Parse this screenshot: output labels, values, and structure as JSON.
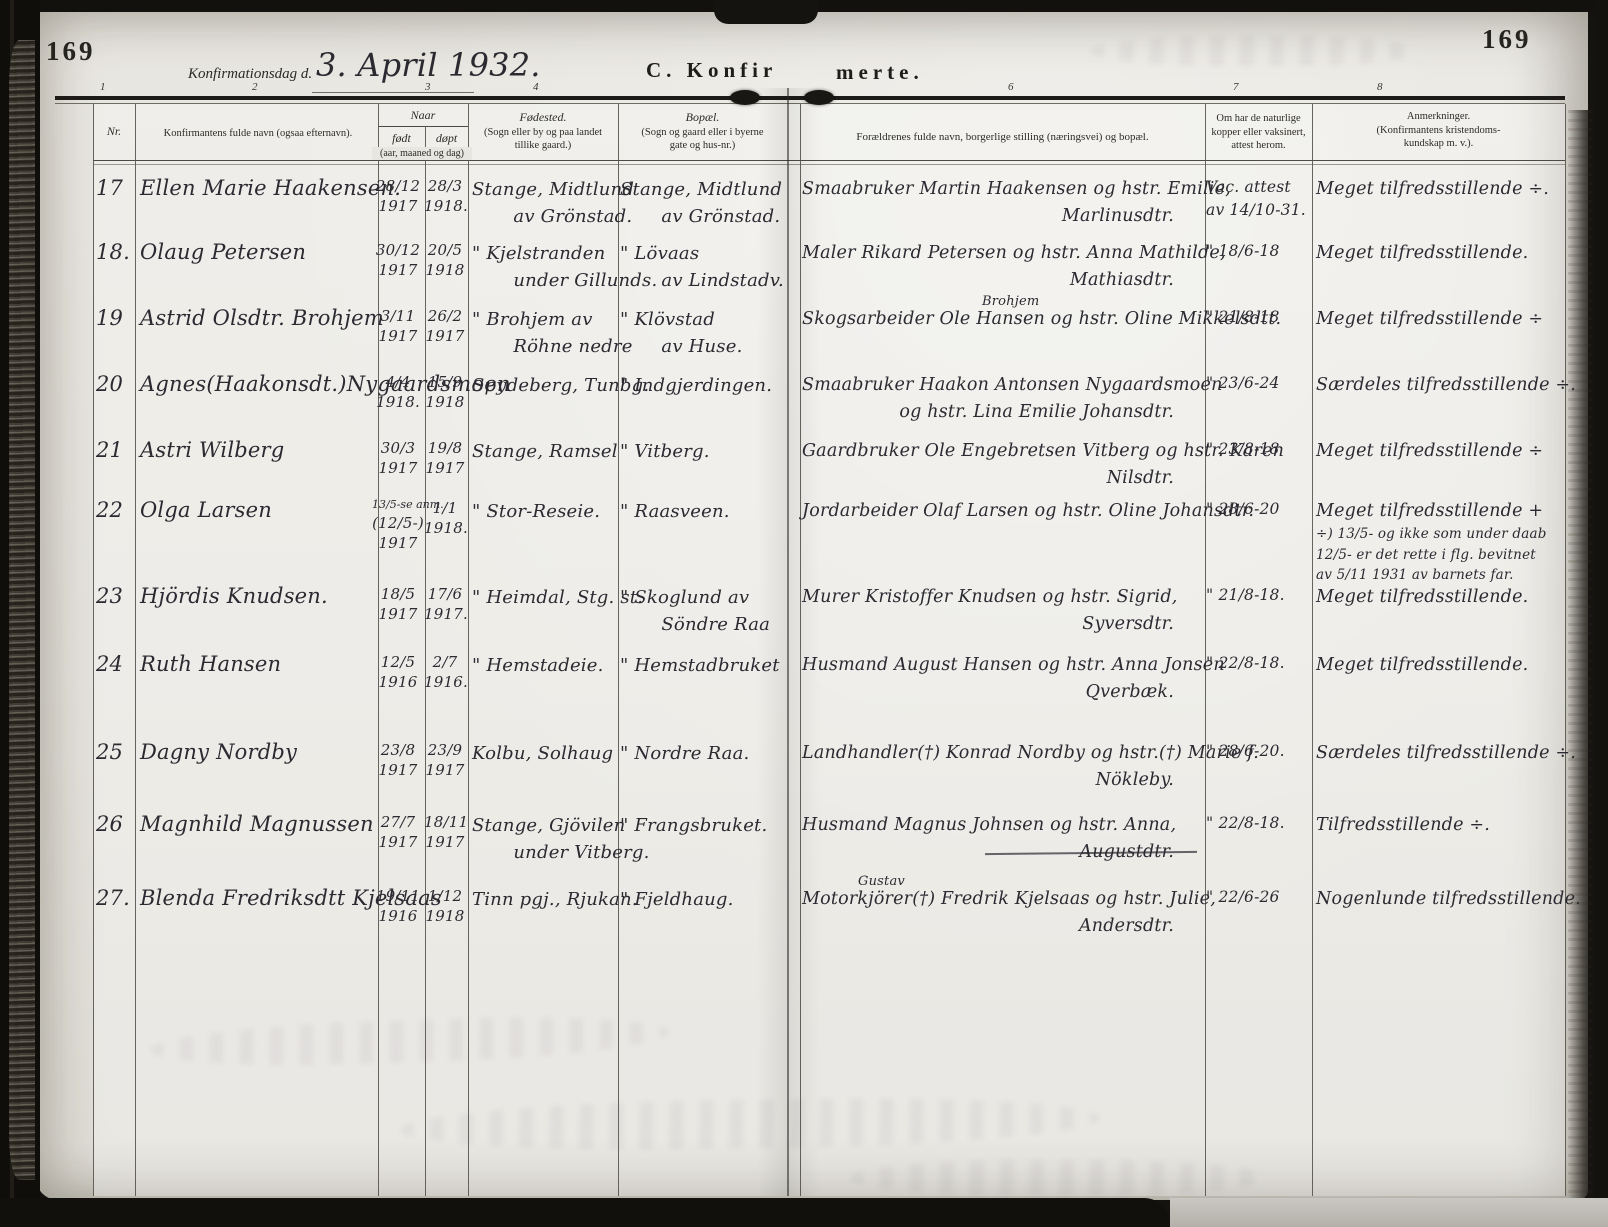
{
  "page": {
    "page_number_left": "169",
    "page_number_right": "169",
    "confirmation_day_label": "Konfirmationsdag d.",
    "confirmation_day_value": "3. April 1932.",
    "section_title_left": "C.  Konfir",
    "section_title_right": "merte.",
    "column_numbers": [
      "1",
      "2",
      "3",
      "4",
      "6",
      "7",
      "8"
    ]
  },
  "table": {
    "headers": {
      "nr": "Nr.",
      "name": "Konfirmantens fulde navn (ogsaa efternavn).",
      "naar": "Naar",
      "born": "født",
      "baptized": "døpt",
      "naar_sub": "(aar, maaned og dag)",
      "birthplace_title": "Fødested.",
      "birthplace_sub": [
        "(Sogn eller by og paa landet",
        "tillike gaard.)"
      ],
      "residence_title": "Bopæl.",
      "residence_sub": [
        "(Sogn og gaard eller i byerne",
        "gate og hus-nr.)"
      ],
      "parents": "Forældrenes fulde navn, borgerlige stilling (næringsvei) og bopæl.",
      "vaccination": [
        "Om har de naturlige",
        "kopper eller vaksinert,",
        "attest herom."
      ],
      "remarks": [
        "Anmerkninger.",
        "(Konfirmantens kristendoms-",
        "kundskap m. v.)."
      ]
    },
    "rows": [
      {
        "nr": "17",
        "name": "Ellen Marie Haakensen.",
        "born": [
          "28/12",
          "1917"
        ],
        "baptized": [
          "28/3",
          "1918."
        ],
        "birthplace": [
          "Stange, Midtlund",
          "av Grönstad."
        ],
        "residence": [
          "Stange, Midtlund",
          "av Grönstad."
        ],
        "parents": [
          "Smaabruker Martin Haakensen og hstr. Emilie,",
          "Marlinusdtr."
        ],
        "vaccination": [
          "Vac. attest",
          "av 14/10-31."
        ],
        "remarks": [
          "Meget tilfredsstillende ÷."
        ]
      },
      {
        "nr": "18.",
        "name": "Olaug Petersen",
        "born": [
          "30/12",
          "1917"
        ],
        "baptized": [
          "20/5",
          "1918"
        ],
        "birthplace": [
          "\" Kjelstranden",
          "under Gillunds."
        ],
        "residence": [
          "\" Lövaas",
          "av Lindstadv."
        ],
        "parents": [
          "Maler Rikard Petersen og hstr. Anna Mathilde,",
          "Mathiasdtr."
        ],
        "vaccination": [
          "\" 18/6-18"
        ],
        "remarks": [
          "Meget tilfredsstillende."
        ]
      },
      {
        "nr": "19",
        "name": "Astrid Olsdtr. Brohjem",
        "born": [
          "3/11",
          "1917"
        ],
        "baptized": [
          "26/2",
          "1917"
        ],
        "birthplace": [
          "\" Brohjem av",
          "Röhne nedre"
        ],
        "residence": [
          "\" Klövstad",
          "av Huse."
        ],
        "parents": [
          "Skogsarbeider Ole Hansen og hstr. Oline Mikkelsdtt."
        ],
        "parents_note": "Brohjem",
        "vaccination": [
          "\" 21/8-18"
        ],
        "remarks": [
          "Meget tilfredsstillende ÷"
        ]
      },
      {
        "nr": "20",
        "name": "Agnes(Haakonsdt.)Nygaardsmoen",
        "born": [
          "4/4",
          "1918."
        ],
        "baptized": [
          "15/9",
          "1918"
        ],
        "birthplace": [
          "Spydeberg, Tunbg."
        ],
        "residence": [
          "\" Indgjerdingen."
        ],
        "parents": [
          "Smaabruker Haakon Antonsen Nygaardsmoen",
          "og hstr. Lina Emilie Johansdtr."
        ],
        "vaccination": [
          "\" 23/6-24"
        ],
        "remarks": [
          "Særdeles tilfredsstillende ÷."
        ]
      },
      {
        "nr": "21",
        "name": "Astri Wilberg",
        "born": [
          "30/3",
          "1917"
        ],
        "baptized": [
          "19/8",
          "1917"
        ],
        "birthplace": [
          "Stange, Ramsel"
        ],
        "residence": [
          "\" Vitberg."
        ],
        "parents": [
          "Gaardbruker Ole Engebretsen Vitberg og hstr. Karen",
          "Nilsdtr."
        ],
        "vaccination": [
          "\" 23/8-18"
        ],
        "remarks": [
          "Meget tilfredsstillende ÷"
        ]
      },
      {
        "nr": "22",
        "name": "Olga Larsen",
        "born": [
          "13/5-se anm.",
          "(12/5-)",
          "1917"
        ],
        "baptized": [
          "1/1",
          "1918."
        ],
        "birthplace": [
          "\" Stor-Reseie."
        ],
        "residence": [
          "\" Raasveen."
        ],
        "parents": [
          "Jordarbeider Olaf Larsen og hstr. Oline Johansdtr."
        ],
        "vaccination": [
          "\" 28/6-20"
        ],
        "remarks": [
          "Meget tilfredsstillende +",
          "÷) 13/5- og ikke som under daab",
          "12/5- er det rette i flg. bevitnet",
          "av 5/11 1931 av barnets far."
        ]
      },
      {
        "nr": "23",
        "name": "Hjördis Knudsen.",
        "born": [
          "18/5",
          "1917"
        ],
        "baptized": [
          "17/6",
          "1917."
        ],
        "birthplace": [
          "\" Heimdal, Stg. st."
        ],
        "residence": [
          "\" Skoglund av",
          "Söndre Raa"
        ],
        "parents": [
          "Murer Kristoffer Knudsen og hstr. Sigrid,",
          "Syversdtr."
        ],
        "vaccination": [
          "\" 21/8-18."
        ],
        "remarks": [
          "Meget tilfredsstillende."
        ]
      },
      {
        "nr": "24",
        "name": "Ruth Hansen",
        "born": [
          "12/5",
          "1916"
        ],
        "baptized": [
          "2/7",
          "1916."
        ],
        "birthplace": [
          "\" Hemstadeie."
        ],
        "residence": [
          "\" Hemstadbruket"
        ],
        "parents": [
          "Husmand August Hansen og hstr. Anna Jonsen",
          "Qverbæk."
        ],
        "vaccination": [
          "\" 22/8-18."
        ],
        "remarks": [
          "Meget tilfredsstillende."
        ]
      },
      {
        "nr": "25",
        "name": "Dagny Nordby",
        "born": [
          "23/8",
          "1917"
        ],
        "baptized": [
          "23/9",
          "1917"
        ],
        "birthplace": [
          "Kolbu, Solhaug"
        ],
        "residence": [
          "\" Nordre Raa."
        ],
        "parents": [
          "Landhandler(†) Konrad Nordby og hstr.(†) Marie f.",
          "Nökleby."
        ],
        "vaccination": [
          "\" 28/6-20."
        ],
        "remarks": [
          "Særdeles tilfredsstillende ÷."
        ]
      },
      {
        "nr": "26",
        "name": "Magnhild Magnussen",
        "born": [
          "27/7",
          "1917"
        ],
        "baptized": [
          "18/11",
          "1917"
        ],
        "birthplace": [
          "Stange, Gjövilen",
          "under Vitberg."
        ],
        "residence": [
          "\" Frangsbruket."
        ],
        "parents": [
          "Husmand Magnus Johnsen og hstr. Anna,",
          "Augustdtr."
        ],
        "vaccination": [
          "\" 22/8-18."
        ],
        "remarks": [
          "Tilfredsstillende ÷."
        ]
      },
      {
        "nr": "27.",
        "name": "Blenda Fredriksdtt Kjelsaas",
        "born": [
          "19/11",
          "1916"
        ],
        "baptized": [
          "1/12",
          "1918"
        ],
        "birthplace": [
          "Tinn pgj., Rjukan."
        ],
        "residence": [
          "\" Fjeldhaug."
        ],
        "parents": [
          "Motorkjörer(†) Fredrik Kjelsaas og hstr. Julie,",
          "Andersdtr."
        ],
        "parents_note": "Gustav",
        "vaccination": [
          "\" 22/6-26"
        ],
        "remarks": [
          "Nogenlunde tilfredsstillende."
        ]
      }
    ]
  }
}
